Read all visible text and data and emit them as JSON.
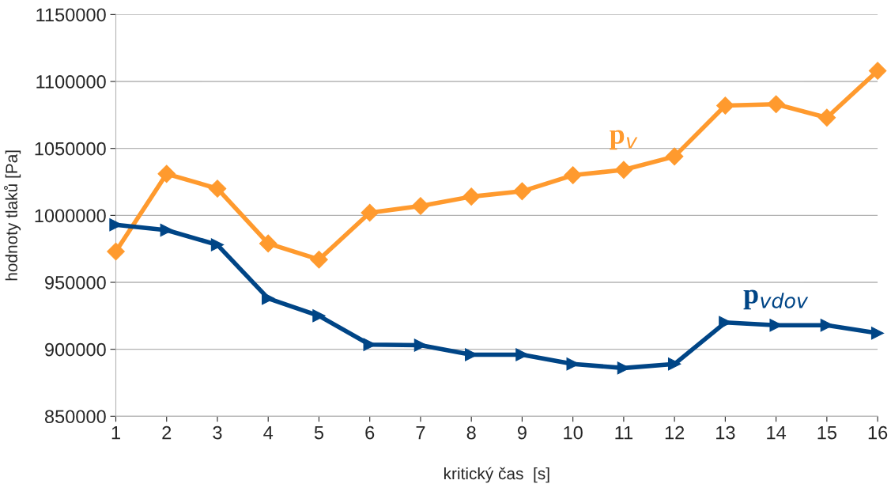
{
  "chart_data": {
    "type": "line",
    "xlabel": "kritický čas  [s]",
    "ylabel": "hodnoty tlaků [Pa]",
    "x": [
      1,
      2,
      3,
      4,
      5,
      6,
      7,
      8,
      9,
      10,
      11,
      12,
      13,
      14,
      15,
      16
    ],
    "series": [
      {
        "name": "p$_{v}$",
        "color": "#ff9a2e",
        "marker": "diamond",
        "values": [
          973000,
          1031000,
          1020000,
          979000,
          967000,
          1002000,
          1007000,
          1014000,
          1018000,
          1030000,
          1034000,
          1044000,
          1082000,
          1083000,
          1073000,
          1108000
        ]
      },
      {
        "name": "p$_{vdov}$",
        "color": "#004586",
        "marker": "triangle",
        "values": [
          993000,
          989000,
          978000,
          938000,
          925000,
          903500,
          903000,
          896000,
          896000,
          889000,
          886000,
          889000,
          920000,
          918000,
          918000,
          912000
        ]
      }
    ],
    "xlim": [
      1,
      16
    ],
    "xticks": [
      1,
      2,
      3,
      4,
      5,
      6,
      7,
      8,
      9,
      10,
      11,
      12,
      13,
      14,
      15,
      16
    ],
    "ylim": [
      850000,
      1150000
    ],
    "yticks": [
      850000,
      900000,
      950000,
      1000000,
      1050000,
      1100000,
      1150000
    ],
    "grid": "y",
    "legend": false,
    "line_style": "solid"
  }
}
